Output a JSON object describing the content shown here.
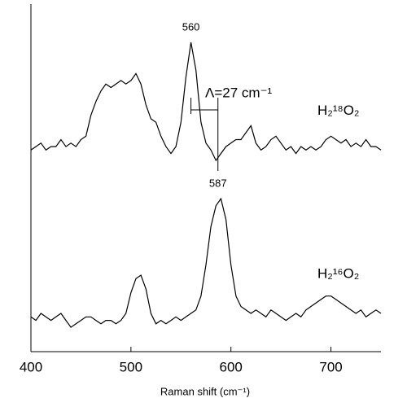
{
  "chart_data": {
    "type": "line",
    "x_label": "Raman shift (cm⁻¹)",
    "xlim": [
      400,
      750
    ],
    "xticks": [
      400,
      500,
      600,
      700
    ],
    "ylim": [
      0,
      100
    ],
    "x": [
      400,
      405,
      410,
      415,
      420,
      425,
      430,
      435,
      440,
      445,
      450,
      455,
      460,
      465,
      470,
      475,
      480,
      485,
      490,
      495,
      500,
      505,
      510,
      515,
      520,
      525,
      530,
      535,
      540,
      545,
      550,
      555,
      560,
      565,
      570,
      575,
      580,
      585,
      590,
      595,
      600,
      605,
      610,
      615,
      620,
      625,
      630,
      635,
      640,
      645,
      650,
      655,
      660,
      665,
      670,
      675,
      680,
      685,
      690,
      695,
      700,
      705,
      710,
      715,
      720,
      725,
      730,
      735,
      740,
      745,
      750
    ],
    "series": [
      {
        "name": "H₂¹⁸O₂",
        "color": "#000000",
        "values": [
          58,
          59,
          60,
          58,
          59,
          59,
          61,
          59,
          60,
          59,
          61,
          62,
          68,
          72,
          75,
          77,
          76,
          77,
          78,
          77,
          78,
          80,
          77,
          71,
          67,
          66,
          62,
          59,
          57,
          59,
          66,
          79,
          89,
          81,
          66,
          60,
          58,
          55,
          57,
          59,
          60,
          61,
          61,
          63,
          65,
          60,
          58,
          59,
          61,
          62,
          60,
          58,
          59,
          57,
          59,
          58,
          59,
          58,
          59,
          61,
          62,
          61,
          60,
          61,
          59,
          60,
          59,
          61,
          59,
          59,
          58
        ]
      },
      {
        "name": "H₂¹⁶O₂",
        "color": "#000000",
        "values": [
          10,
          9,
          11,
          10,
          9,
          10,
          11,
          9,
          7,
          8,
          9,
          10,
          10,
          9,
          8,
          9,
          9,
          8,
          9,
          11,
          17,
          21,
          22,
          18,
          11,
          8,
          9,
          8,
          9,
          10,
          9,
          10,
          11,
          12,
          16,
          25,
          36,
          42,
          44,
          38,
          25,
          16,
          13,
          12,
          11,
          12,
          11,
          10,
          12,
          11,
          10,
          9,
          10,
          11,
          10,
          12,
          13,
          14,
          15,
          16,
          16,
          15,
          14,
          13,
          12,
          11,
          12,
          10,
          11,
          12,
          11
        ]
      }
    ],
    "annotations": [
      {
        "text": "560",
        "x": 560,
        "y": 89
      },
      {
        "text": "587",
        "x": 587,
        "y": 44
      }
    ],
    "shift_label": "Λ=27 cm⁻¹"
  }
}
